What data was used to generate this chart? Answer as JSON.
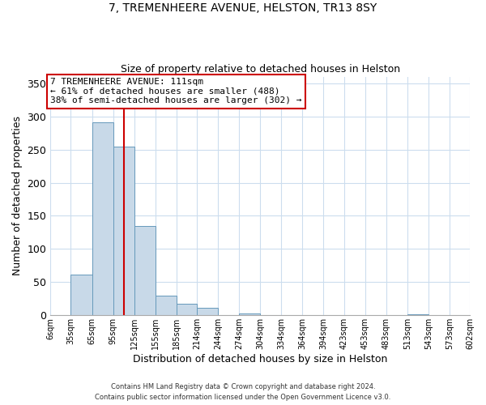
{
  "title": "7, TREMENHEERE AVENUE, HELSTON, TR13 8SY",
  "subtitle": "Size of property relative to detached houses in Helston",
  "xlabel": "Distribution of detached houses by size in Helston",
  "ylabel": "Number of detached properties",
  "bin_edges": [
    6,
    35,
    65,
    95,
    125,
    155,
    185,
    214,
    244,
    274,
    304,
    334,
    364,
    394,
    423,
    453,
    483,
    513,
    543,
    573,
    602
  ],
  "bin_labels": [
    "6sqm",
    "35sqm",
    "65sqm",
    "95sqm",
    "125sqm",
    "155sqm",
    "185sqm",
    "214sqm",
    "244sqm",
    "274sqm",
    "304sqm",
    "334sqm",
    "364sqm",
    "394sqm",
    "423sqm",
    "453sqm",
    "483sqm",
    "513sqm",
    "543sqm",
    "573sqm",
    "602sqm"
  ],
  "bar_heights": [
    0,
    62,
    291,
    255,
    135,
    30,
    18,
    11,
    0,
    3,
    0,
    0,
    0,
    0,
    0,
    0,
    0,
    1,
    0,
    0
  ],
  "bar_color": "#c8d9e8",
  "bar_edge_color": "#6699bb",
  "property_value": 111,
  "vline_color": "#cc0000",
  "ylim": [
    0,
    360
  ],
  "yticks": [
    0,
    50,
    100,
    150,
    200,
    250,
    300,
    350
  ],
  "annotation_text": "7 TREMENHEERE AVENUE: 111sqm\n← 61% of detached houses are smaller (488)\n38% of semi-detached houses are larger (302) →",
  "annotation_box_color": "#ffffff",
  "annotation_box_edge_color": "#cc0000",
  "footer_line1": "Contains HM Land Registry data © Crown copyright and database right 2024.",
  "footer_line2": "Contains public sector information licensed under the Open Government Licence v3.0.",
  "background_color": "#ffffff",
  "grid_color": "#ccddee"
}
